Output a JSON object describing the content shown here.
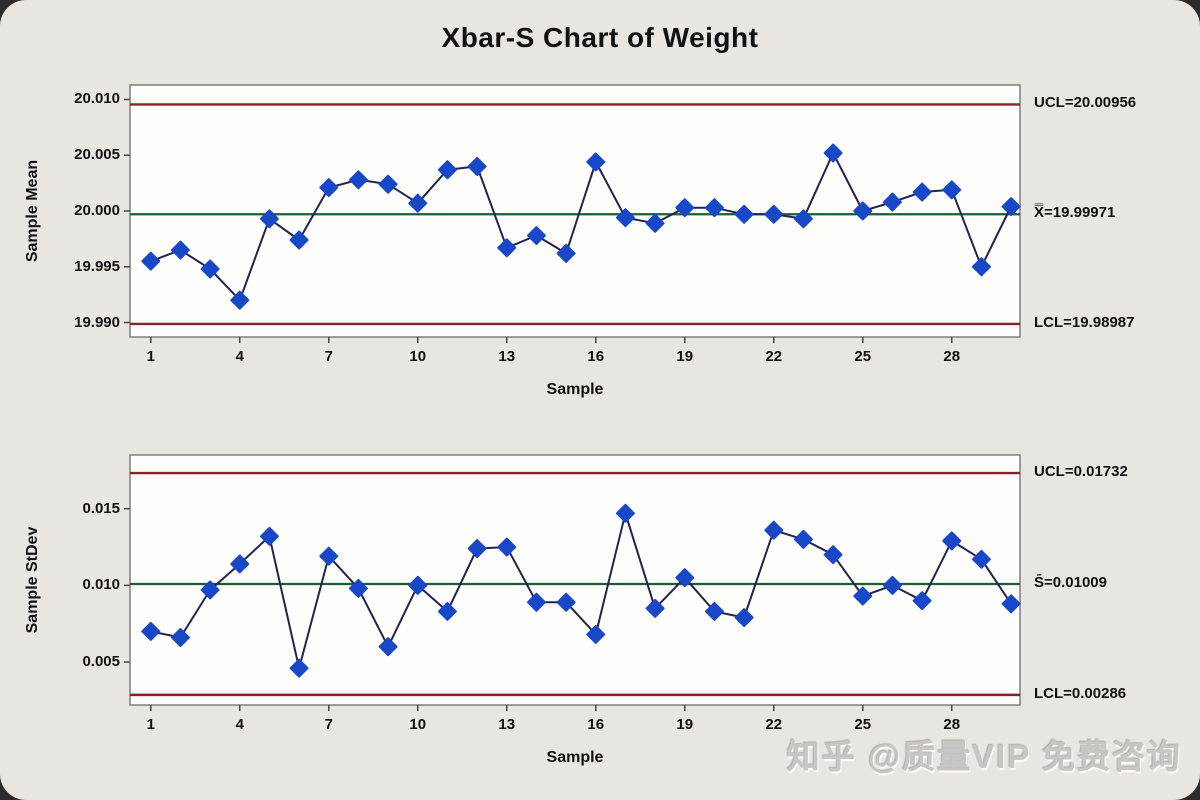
{
  "title": "Xbar-S Chart of Weight",
  "watermark": "知乎 @质量VIP 免费咨询",
  "colors": {
    "background": "#e9e6e2",
    "plot_background": "#fdfdfb",
    "plot_border": "#7f7f7f",
    "control_limit_line": "#8b2222",
    "center_line": "#1e5c34",
    "series_line": "#23234f",
    "marker": "#1848c8",
    "tick_mark": "#444444"
  },
  "chart_data": [
    {
      "type": "line",
      "name": "xbar-chart",
      "title": "",
      "ylabel": "Sample Mean",
      "xlabel": "Sample",
      "x": [
        1,
        2,
        3,
        4,
        5,
        6,
        7,
        8,
        9,
        10,
        11,
        12,
        13,
        14,
        15,
        16,
        17,
        18,
        19,
        20,
        21,
        22,
        23,
        24,
        25,
        26,
        27,
        28,
        29,
        30
      ],
      "values": [
        19.9955,
        19.9965,
        19.9948,
        19.992,
        19.9993,
        19.9974,
        20.0021,
        20.0028,
        20.0024,
        20.0007,
        20.0037,
        20.004,
        19.9967,
        19.9978,
        19.9962,
        20.0044,
        19.9994,
        19.9989,
        20.0003,
        20.0003,
        19.9997,
        19.9997,
        19.9993,
        20.0052,
        20.0,
        20.0008,
        20.0017,
        20.0019,
        19.995,
        20.0004
      ],
      "center": 19.99971,
      "ucl": 20.00956,
      "lcl": 19.98987,
      "labels": {
        "ucl": "UCL=20.00956",
        "center": "X̿=19.99971",
        "lcl": "LCL=19.98987"
      },
      "yticks": [
        19.99,
        19.995,
        20.0,
        20.005,
        20.01
      ],
      "ytick_labels": [
        "19.990",
        "19.995",
        "20.000",
        "20.005",
        "20.010"
      ],
      "xticks": [
        1,
        4,
        7,
        10,
        13,
        16,
        19,
        22,
        25,
        28
      ],
      "xtick_labels": [
        "1",
        "4",
        "7",
        "10",
        "13",
        "16",
        "19",
        "22",
        "25",
        "28"
      ],
      "ylim": [
        19.9887,
        20.0113
      ],
      "xlim": [
        0.3,
        30.3
      ],
      "grid": false,
      "legend": "none"
    },
    {
      "type": "line",
      "name": "stdev-chart",
      "title": "",
      "ylabel": "Sample StDev",
      "xlabel": "Sample",
      "x": [
        1,
        2,
        3,
        4,
        5,
        6,
        7,
        8,
        9,
        10,
        11,
        12,
        13,
        14,
        15,
        16,
        17,
        18,
        19,
        20,
        21,
        22,
        23,
        24,
        25,
        26,
        27,
        28,
        29,
        30
      ],
      "values": [
        0.007,
        0.0066,
        0.0097,
        0.0114,
        0.0132,
        0.0046,
        0.0119,
        0.0098,
        0.006,
        0.01,
        0.0083,
        0.0124,
        0.0125,
        0.0089,
        0.0089,
        0.0068,
        0.0147,
        0.0085,
        0.0105,
        0.0083,
        0.0079,
        0.0136,
        0.013,
        0.012,
        0.0093,
        0.01,
        0.009,
        0.0129,
        0.0117,
        0.0088
      ],
      "center": 0.01009,
      "ucl": 0.01732,
      "lcl": 0.00286,
      "labels": {
        "ucl": "UCL=0.01732",
        "center": "S̄=0.01009",
        "lcl": "LCL=0.00286"
      },
      "yticks": [
        0.005,
        0.01,
        0.015
      ],
      "ytick_labels": [
        "0.005",
        "0.010",
        "0.015"
      ],
      "xticks": [
        1,
        4,
        7,
        10,
        13,
        16,
        19,
        22,
        25,
        28
      ],
      "xtick_labels": [
        "1",
        "4",
        "7",
        "10",
        "13",
        "16",
        "19",
        "22",
        "25",
        "28"
      ],
      "ylim": [
        0.0022,
        0.0185
      ],
      "xlim": [
        0.3,
        30.3
      ],
      "grid": false,
      "legend": "none"
    }
  ]
}
